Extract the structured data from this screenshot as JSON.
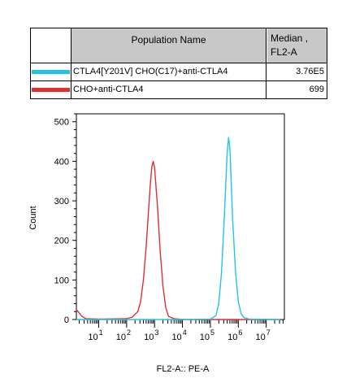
{
  "legend": {
    "header_name": "Population Name",
    "header_median_line1": "Median ,",
    "header_median_line2": "FL2-A",
    "rows": [
      {
        "name": "CTLA4[Y201V] CHO(C17)+anti-CTLA4",
        "value": "3.76E5",
        "color": "#22c4e6"
      },
      {
        "name": "CHO+anti-CTLA4",
        "value": "699",
        "color": "#e0302e"
      }
    ]
  },
  "chart_data": {
    "type": "line",
    "title": "",
    "xlabel": "FL2-A:: PE-A",
    "ylabel": "Count",
    "xscale": "log",
    "ylim": [
      0,
      520
    ],
    "yticks": [
      "0",
      "100",
      "200",
      "300",
      "400",
      "500"
    ],
    "xticks": [
      {
        "base": "10",
        "exp": "1"
      },
      {
        "base": "10",
        "exp": "2"
      },
      {
        "base": "10",
        "exp": "3"
      },
      {
        "base": "10",
        "exp": "4"
      },
      {
        "base": "10",
        "exp": "5"
      },
      {
        "base": "10",
        "exp": "6"
      },
      {
        "base": "10",
        "exp": "7"
      }
    ],
    "series": [
      {
        "name": "CHO+anti-CTLA4",
        "color": "#e0302e",
        "x": [
          0.2,
          0.4,
          0.55,
          1.0,
          2.0,
          2.2,
          2.4,
          2.5,
          2.6,
          2.7,
          2.8,
          2.85,
          2.9,
          2.95,
          3.0,
          3.1,
          3.2,
          3.3,
          3.4,
          3.5,
          3.7,
          4.0,
          5.0,
          7.5
        ],
        "y": [
          25,
          8,
          2,
          1,
          2,
          6,
          20,
          45,
          100,
          185,
          290,
          345,
          385,
          400,
          385,
          290,
          175,
          85,
          30,
          8,
          2,
          0,
          0,
          0
        ]
      },
      {
        "name": "CTLA4[Y201V] CHO(C17)+anti-CTLA4",
        "color": "#22c4e6",
        "x": [
          0.2,
          4.0,
          5.0,
          5.2,
          5.3,
          5.4,
          5.5,
          5.55,
          5.6,
          5.65,
          5.7,
          5.75,
          5.8,
          5.9,
          6.0,
          6.1,
          6.2,
          6.4,
          7.5
        ],
        "y": [
          0,
          0,
          1,
          10,
          40,
          120,
          260,
          340,
          420,
          460,
          430,
          340,
          250,
          120,
          45,
          15,
          5,
          1,
          0
        ]
      }
    ]
  }
}
